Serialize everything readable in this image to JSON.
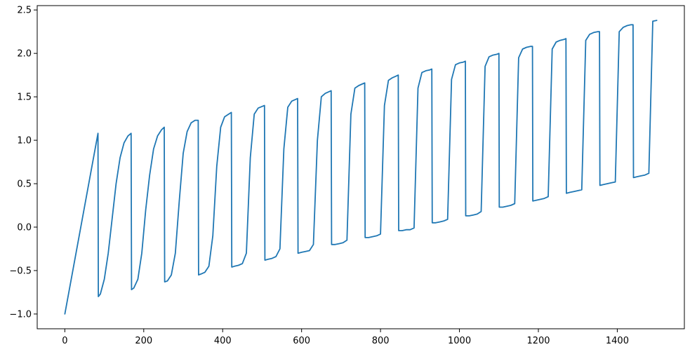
{
  "chart_data": {
    "type": "line",
    "title": "",
    "xlabel": "",
    "ylabel": "",
    "xlim": [
      -70,
      1570
    ],
    "ylim": [
      -1.17,
      2.55
    ],
    "grid": false,
    "legend": "none",
    "line_color": "#1f77b4",
    "x_ticks": [
      0,
      200,
      400,
      600,
      800,
      1000,
      1200,
      1400
    ],
    "x_tick_labels": [
      "0",
      "200",
      "400",
      "600",
      "800",
      "1000",
      "1200",
      "1400"
    ],
    "y_ticks": [
      -1.0,
      -0.5,
      0.0,
      0.5,
      1.0,
      1.5,
      2.0,
      2.5
    ],
    "y_tick_labels": [
      "−1.0",
      "−0.5",
      "0.0",
      "0.5",
      "1.0",
      "1.5",
      "2.0",
      "2.5"
    ],
    "series": [
      {
        "x": [
          0,
          84,
          85,
          90,
          100,
          110,
          120,
          130,
          140,
          150,
          160,
          168,
          169,
          175,
          185,
          195,
          205,
          215,
          225,
          235,
          245,
          252,
          253,
          260,
          270,
          280,
          290,
          300,
          310,
          320,
          330,
          338,
          339,
          345,
          355,
          365,
          375,
          385,
          395,
          405,
          415,
          422,
          423,
          430,
          440,
          450,
          460,
          470,
          480,
          490,
          500,
          506,
          507,
          515,
          525,
          535,
          545,
          555,
          565,
          575,
          585,
          590,
          591,
          600,
          610,
          620,
          630,
          640,
          650,
          660,
          670,
          675,
          676,
          685,
          695,
          705,
          715,
          725,
          735,
          745,
          755,
          760,
          761,
          770,
          780,
          790,
          800,
          810,
          820,
          830,
          840,
          845,
          846,
          855,
          865,
          875,
          885,
          895,
          905,
          915,
          925,
          930,
          931,
          940,
          950,
          960,
          970,
          980,
          990,
          1000,
          1010,
          1015,
          1016,
          1025,
          1035,
          1045,
          1055,
          1065,
          1075,
          1085,
          1095,
          1100,
          1101,
          1110,
          1120,
          1130,
          1140,
          1150,
          1160,
          1170,
          1180,
          1185,
          1186,
          1195,
          1205,
          1215,
          1225,
          1235,
          1245,
          1255,
          1265,
          1270,
          1271,
          1280,
          1290,
          1300,
          1310,
          1320,
          1330,
          1340,
          1350,
          1355,
          1356,
          1365,
          1375,
          1385,
          1395,
          1405,
          1415,
          1425,
          1435,
          1440,
          1441,
          1450,
          1460,
          1470,
          1480,
          1490,
          1500
        ],
        "y": [
          -1.0,
          1.08,
          -0.8,
          -0.77,
          -0.6,
          -0.3,
          0.1,
          0.5,
          0.8,
          0.97,
          1.05,
          1.08,
          -0.72,
          -0.7,
          -0.6,
          -0.3,
          0.2,
          0.6,
          0.9,
          1.05,
          1.12,
          1.15,
          -0.63,
          -0.62,
          -0.55,
          -0.3,
          0.3,
          0.85,
          1.1,
          1.2,
          1.23,
          1.23,
          -0.55,
          -0.54,
          -0.52,
          -0.45,
          -0.1,
          0.7,
          1.15,
          1.27,
          1.3,
          1.32,
          -0.46,
          -0.45,
          -0.44,
          -0.42,
          -0.3,
          0.8,
          1.3,
          1.37,
          1.39,
          1.4,
          -0.38,
          -0.37,
          -0.36,
          -0.34,
          -0.25,
          0.9,
          1.38,
          1.45,
          1.47,
          1.48,
          -0.3,
          -0.29,
          -0.28,
          -0.27,
          -0.2,
          1.0,
          1.5,
          1.54,
          1.56,
          1.57,
          -0.2,
          -0.2,
          -0.19,
          -0.18,
          -0.15,
          1.3,
          1.6,
          1.63,
          1.65,
          1.66,
          -0.12,
          -0.12,
          -0.11,
          -0.1,
          -0.08,
          1.4,
          1.69,
          1.72,
          1.74,
          1.75,
          -0.04,
          -0.04,
          -0.03,
          -0.03,
          -0.01,
          1.6,
          1.78,
          1.8,
          1.81,
          1.82,
          0.05,
          0.05,
          0.06,
          0.07,
          0.09,
          1.7,
          1.87,
          1.89,
          1.9,
          1.91,
          0.13,
          0.13,
          0.14,
          0.15,
          0.18,
          1.85,
          1.96,
          1.98,
          1.99,
          2.0,
          0.23,
          0.23,
          0.24,
          0.25,
          0.27,
          1.95,
          2.05,
          2.07,
          2.08,
          2.08,
          0.3,
          0.31,
          0.32,
          0.33,
          0.35,
          2.05,
          2.13,
          2.15,
          2.16,
          2.17,
          0.39,
          0.4,
          0.41,
          0.42,
          0.43,
          2.15,
          2.22,
          2.24,
          2.25,
          2.25,
          0.48,
          0.49,
          0.5,
          0.51,
          0.52,
          2.25,
          2.3,
          2.32,
          2.33,
          2.33,
          0.57,
          0.58,
          0.59,
          0.6,
          0.62,
          2.37,
          2.38
        ]
      }
    ]
  }
}
